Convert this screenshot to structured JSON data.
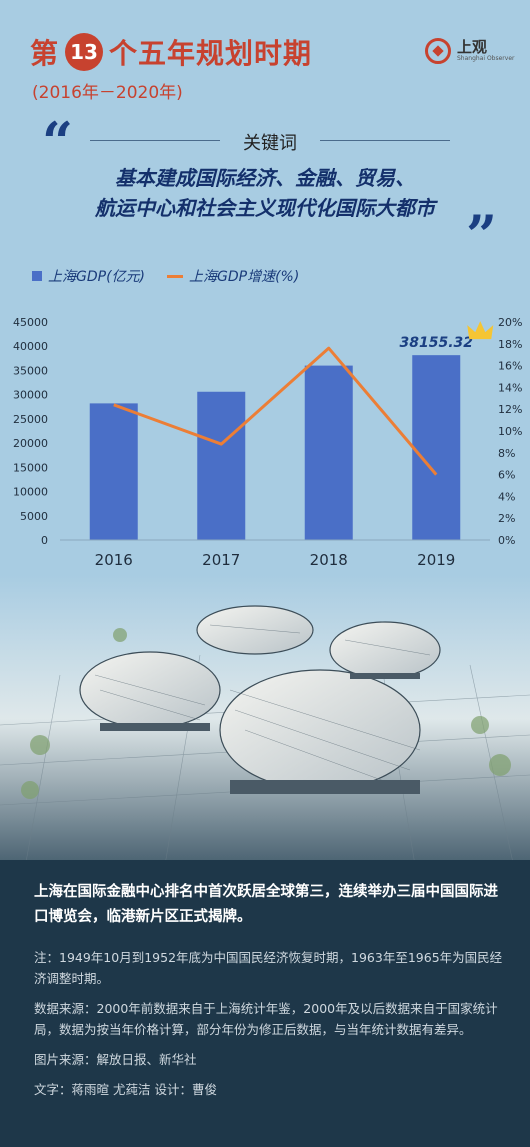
{
  "header": {
    "title_pre": "第",
    "title_num": "13",
    "title_post": "个五年规划时期",
    "years": "(2016年－2020年)"
  },
  "logo": {
    "cn": "上观",
    "en": "Shanghai Observer"
  },
  "keywords": {
    "title": "关键词",
    "line1": "基本建成国际经济、金融、贸易、",
    "line2": "航运中心和社会主义现代化国际大都市"
  },
  "legend": {
    "bar": "上海GDP(亿元)",
    "line": "上海GDP增速(%)"
  },
  "colors": {
    "title_red": "#c7422f",
    "bar_blue": "#4a6fc7",
    "line_orange": "#ec7e36",
    "navy": "#1b3f82",
    "crown_yellow": "#f5c533"
  },
  "chart_data": {
    "type": "bar+line",
    "categories": [
      "2016",
      "2017",
      "2018",
      "2019"
    ],
    "series": [
      {
        "name": "上海GDP(亿元)",
        "type": "bar",
        "axis": "left",
        "values": [
          28200,
          30600,
          36000,
          38155.32
        ]
      },
      {
        "name": "上海GDP增速(%)",
        "type": "line",
        "axis": "right",
        "values": [
          12.4,
          8.8,
          17.6,
          6.0
        ]
      }
    ],
    "highlight_label": "38155.32",
    "y_left": {
      "min": 0,
      "max": 45000,
      "ticks": [
        "45000",
        "40000",
        "35000",
        "30000",
        "25000",
        "20000",
        "15000",
        "10000",
        "5000",
        "0"
      ]
    },
    "y_right": {
      "min": 0,
      "max": 20,
      "ticks": [
        "20%",
        "18%",
        "16%",
        "14%",
        "12%",
        "10%",
        "8%",
        "6%",
        "4%",
        "2%",
        "0%"
      ]
    },
    "grid": false,
    "legend_position": "top-left"
  },
  "caption": {
    "headline": "上海在国际金融中心排名中首次跃居全球第三，连续举办三届中国国际进口博览会，临港新片区正式揭牌。",
    "note": "注：1949年10月到1952年底为中国国民经济恢复时期，1963年至1965年为国民经济调整时期。",
    "source": "数据来源：2000年前数据来自于上海统计年鉴，2000年及以后数据来自于国家统计局，数据为按当年价格计算，部分年份为修正后数据，与当年统计数据有差异。",
    "image_credit": "图片来源：解放日报、新华社",
    "credits": "文字：蒋雨暄 尤莼洁 设计：曹俊"
  }
}
